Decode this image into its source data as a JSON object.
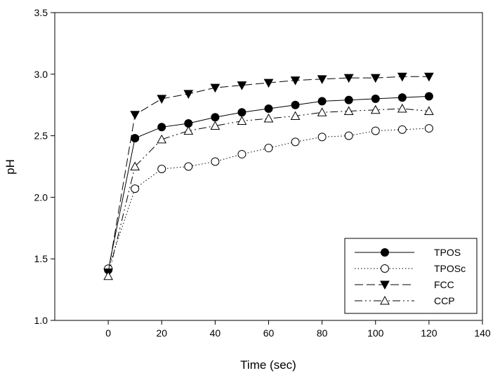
{
  "chart_data": {
    "type": "line",
    "title": "",
    "xlabel": "Time (sec)",
    "ylabel": "pH",
    "xlim": [
      -20,
      140
    ],
    "ylim": [
      1.0,
      3.5
    ],
    "xticks": [
      0,
      20,
      40,
      60,
      80,
      100,
      120,
      140
    ],
    "xtick_labels": [
      "0",
      "20",
      "40",
      "60",
      "80",
      "100",
      "120",
      "140"
    ],
    "yticks": [
      1.0,
      1.5,
      2.0,
      2.5,
      3.0,
      3.5
    ],
    "ytick_labels": [
      "1.0",
      "1.5",
      "2.0",
      "2.5",
      "3.0",
      "3.5"
    ],
    "grid": false,
    "legend_position": "bottom-right",
    "x": [
      0,
      10,
      20,
      30,
      40,
      50,
      60,
      70,
      80,
      90,
      100,
      110,
      120
    ],
    "series": [
      {
        "name": "TPOS",
        "marker": "filled-circle",
        "line_style": "solid",
        "values": [
          1.41,
          2.48,
          2.57,
          2.6,
          2.65,
          2.69,
          2.72,
          2.75,
          2.78,
          2.79,
          2.8,
          2.81,
          2.82
        ]
      },
      {
        "name": "TPOSc",
        "marker": "open-circle",
        "line_style": "dotted",
        "values": [
          1.42,
          2.07,
          2.23,
          2.25,
          2.29,
          2.35,
          2.4,
          2.45,
          2.49,
          2.5,
          2.54,
          2.55,
          2.56
        ]
      },
      {
        "name": "FCC",
        "marker": "filled-triangle-down",
        "line_style": "dashed",
        "values": [
          1.39,
          2.67,
          2.8,
          2.84,
          2.89,
          2.91,
          2.93,
          2.95,
          2.96,
          2.97,
          2.97,
          2.98,
          2.98
        ]
      },
      {
        "name": "CCP",
        "marker": "open-triangle-up",
        "line_style": "dash-dot-dot",
        "values": [
          1.36,
          2.25,
          2.47,
          2.54,
          2.58,
          2.62,
          2.64,
          2.66,
          2.69,
          2.7,
          2.71,
          2.72,
          2.7
        ]
      }
    ]
  }
}
